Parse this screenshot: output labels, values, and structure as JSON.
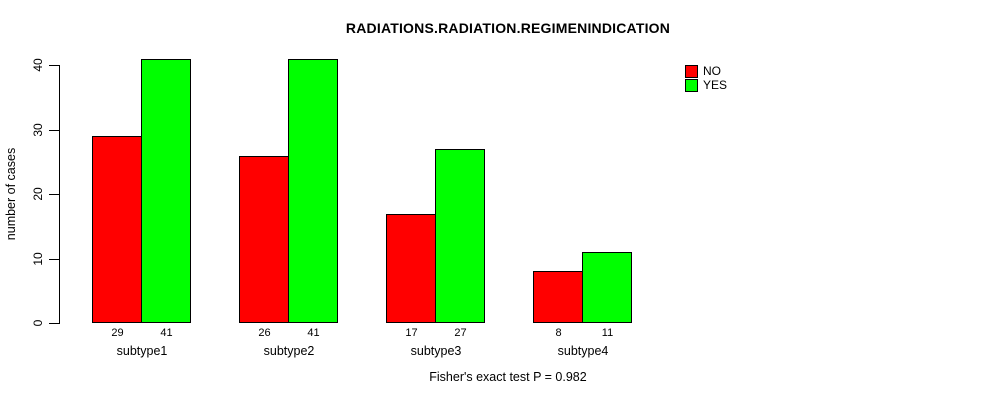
{
  "chart_data": {
    "type": "bar",
    "title": "RADIATIONS.RADIATION.REGIMENINDICATION",
    "xlabel": "",
    "ylabel": "number of cases",
    "categories": [
      "subtype1",
      "subtype2",
      "subtype3",
      "subtype4"
    ],
    "series": [
      {
        "name": "NO",
        "color": "#FF0000",
        "values": [
          29,
          26,
          17,
          8
        ]
      },
      {
        "name": "YES",
        "color": "#00FF00",
        "values": [
          41,
          41,
          27,
          11
        ]
      }
    ],
    "yticks": [
      0,
      10,
      20,
      30,
      40
    ],
    "ylim": [
      0,
      41
    ],
    "grid": false,
    "legend_position": "top-right",
    "bar_value_labels_shown": true,
    "annotation": "Fisher's exact test P = 0.982"
  },
  "colors": {
    "background": "#FFFFFF",
    "axis": "#000000",
    "text": "#000000",
    "bar_no": "#FF0000",
    "bar_yes": "#00FF00"
  }
}
